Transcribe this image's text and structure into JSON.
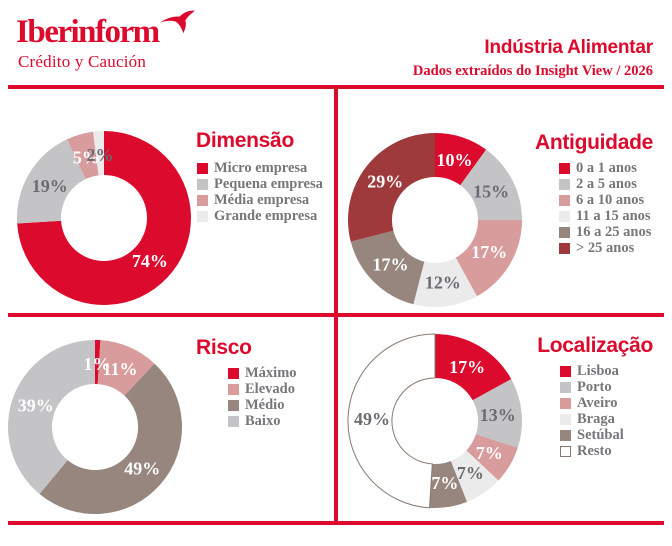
{
  "brand": {
    "wordmark": "Iberinform",
    "subtitle": "Crédito y Caución",
    "bird_icon": "swallow-icon"
  },
  "header": {
    "title": "Indústria Alimentar",
    "subtitle": "Dados extraídos do Insight View / 2026"
  },
  "palette": {
    "red": "#DC0A2D",
    "gray": "#C4C4C7",
    "pink": "#D89C9D",
    "lightgray": "#EBEBEB",
    "taupe": "#97867E",
    "maroon": "#9E3A3C",
    "white": "#FFFFFF",
    "outline": "#8A7970",
    "label_dark": "#6B6B70",
    "legend_text": "#77777B"
  },
  "chart_data": [
    {
      "type": "pie",
      "variant": "donut",
      "title": "Dimensão",
      "start_angle_deg": 0,
      "direction": "clockwise",
      "legend_position": "right",
      "slices": [
        {
          "label": "Micro empresa",
          "value": 74,
          "display": "74%",
          "color": "red",
          "label_color": "light"
        },
        {
          "label": "Pequena empresa",
          "value": 19,
          "display": "19%",
          "color": "gray",
          "label_color": "dark"
        },
        {
          "label": "Média empresa",
          "value": 5,
          "display": "5%",
          "color": "pink",
          "label_color": "light"
        },
        {
          "label": "Grande empresa",
          "value": 2,
          "display": "2%",
          "color": "lightgray",
          "label_color": "dark"
        }
      ]
    },
    {
      "type": "pie",
      "variant": "donut",
      "title": "Antiguidade",
      "start_angle_deg": 0,
      "direction": "clockwise",
      "legend_position": "right",
      "slices": [
        {
          "label": "0 a 1 anos",
          "value": 10,
          "display": "10%",
          "color": "red",
          "label_color": "light"
        },
        {
          "label": "2 a 5 anos",
          "value": 15,
          "display": "15%",
          "color": "gray",
          "label_color": "dark"
        },
        {
          "label": "6 a 10 anos",
          "value": 17,
          "display": "17%",
          "color": "pink",
          "label_color": "light"
        },
        {
          "label": "11 a 15 anos",
          "value": 12,
          "display": "12%",
          "color": "lightgray",
          "label_color": "dark"
        },
        {
          "label": "16 a 25 anos",
          "value": 17,
          "display": "17%",
          "color": "taupe",
          "label_color": "light"
        },
        {
          "label": "> 25 anos",
          "value": 29,
          "display": "29%",
          "color": "maroon",
          "label_color": "light"
        }
      ]
    },
    {
      "type": "pie",
      "variant": "donut",
      "title": "Risco",
      "start_angle_deg": 0,
      "direction": "clockwise",
      "legend_position": "right",
      "slices": [
        {
          "label": "Máximo",
          "value": 1,
          "display": "1%",
          "color": "red",
          "label_color": "light"
        },
        {
          "label": "Elevado",
          "value": 11,
          "display": "11%",
          "color": "pink",
          "label_color": "light"
        },
        {
          "label": "Médio",
          "value": 49,
          "display": "49%",
          "color": "taupe",
          "label_color": "light"
        },
        {
          "label": "Baixo",
          "value": 39,
          "display": "39%",
          "color": "gray",
          "label_color": "light"
        }
      ]
    },
    {
      "type": "pie",
      "variant": "donut",
      "title": "Localização",
      "start_angle_deg": 0,
      "direction": "clockwise",
      "legend_position": "right",
      "slices": [
        {
          "label": "Lisboa",
          "value": 17,
          "display": "17%",
          "color": "red",
          "label_color": "light"
        },
        {
          "label": "Porto",
          "value": 13,
          "display": "13%",
          "color": "gray",
          "label_color": "dark"
        },
        {
          "label": "Aveiro",
          "value": 7,
          "display": "7%",
          "color": "pink",
          "label_color": "light"
        },
        {
          "label": "Braga",
          "value": 7,
          "display": "7%",
          "color": "lightgray",
          "label_color": "dark"
        },
        {
          "label": "Setúbal",
          "value": 7,
          "display": "7%",
          "color": "taupe",
          "label_color": "light"
        },
        {
          "label": "Resto",
          "value": 49,
          "display": "49%",
          "color": "white",
          "label_color": "dark",
          "outlined": true
        }
      ]
    }
  ]
}
